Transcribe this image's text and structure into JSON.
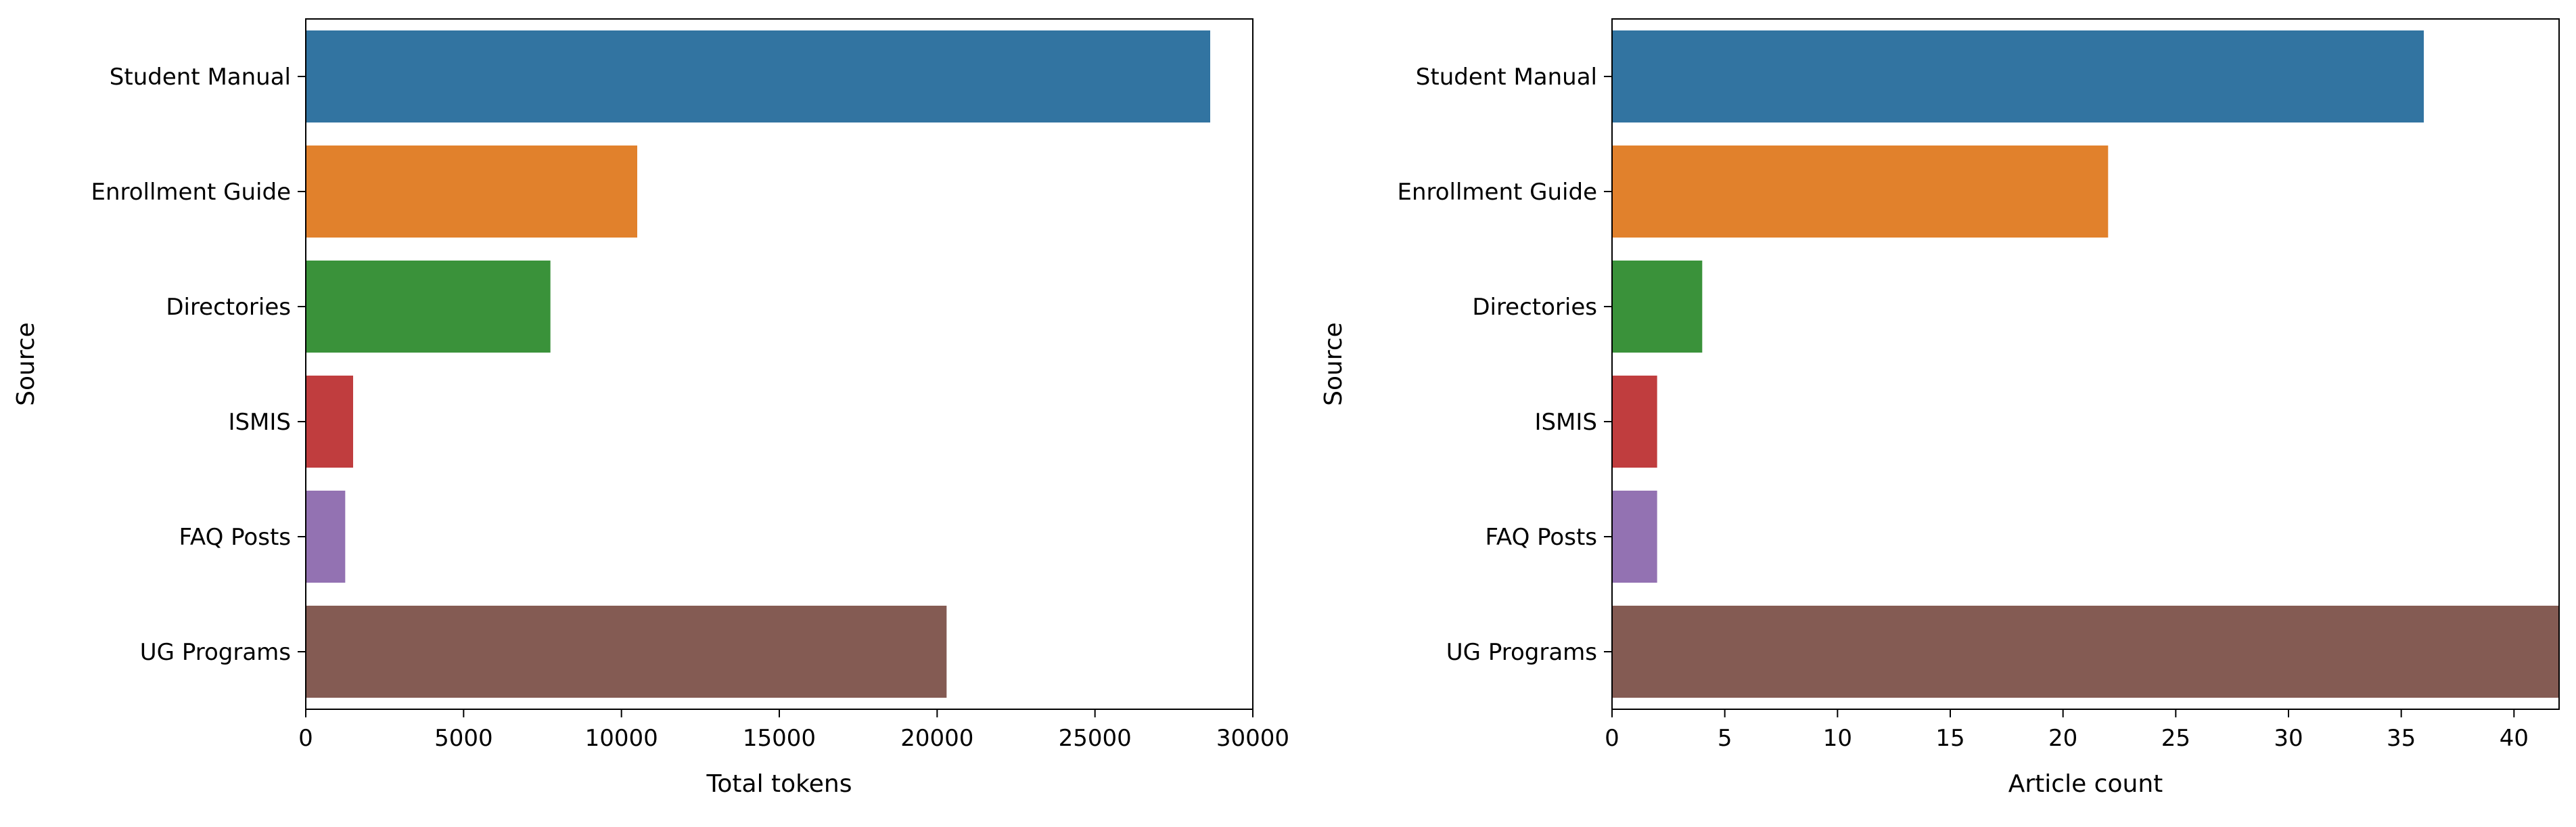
{
  "chart_data": [
    {
      "type": "bar",
      "orientation": "horizontal",
      "title": "",
      "xlabel": "Total tokens",
      "ylabel": "Source",
      "categories": [
        "Student Manual",
        "Enrollment Guide",
        "Directories",
        "ISMIS",
        "FAQ Posts",
        "UG Programs"
      ],
      "values": [
        28650,
        10500,
        7750,
        1500,
        1250,
        20300
      ],
      "colors": [
        "#3274a1",
        "#e1812c",
        "#3a923a",
        "#c03d3e",
        "#9372b2",
        "#845b53"
      ],
      "xlim": [
        0,
        30000
      ],
      "xticks": [
        0,
        5000,
        10000,
        15000,
        20000,
        25000,
        30000
      ],
      "grid": false,
      "legend": "none"
    },
    {
      "type": "bar",
      "orientation": "horizontal",
      "title": "",
      "xlabel": "Article count",
      "ylabel": "Source",
      "categories": [
        "Student Manual",
        "Enrollment Guide",
        "Directories",
        "ISMIS",
        "FAQ Posts",
        "UG Programs"
      ],
      "values": [
        36,
        22,
        4,
        2,
        2,
        42
      ],
      "colors": [
        "#3274a1",
        "#e1812c",
        "#3a923a",
        "#c03d3e",
        "#9372b2",
        "#845b53"
      ],
      "xlim": [
        0,
        42
      ],
      "xticks": [
        0,
        5,
        10,
        15,
        20,
        25,
        30,
        35,
        40
      ],
      "grid": false,
      "legend": "none"
    }
  ]
}
